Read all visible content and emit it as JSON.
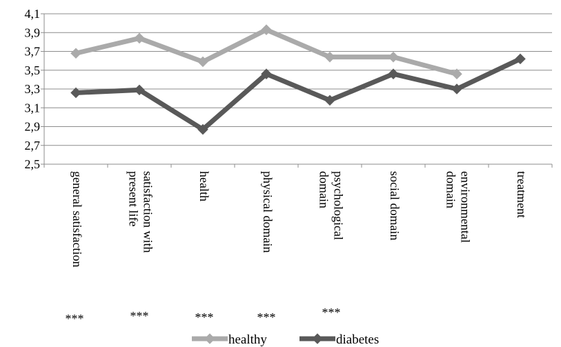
{
  "chart_data": {
    "type": "line",
    "title": "",
    "xlabel": "",
    "ylabel": "",
    "ylim": [
      2.5,
      4.1
    ],
    "yticks": [
      "2,5",
      "2,7",
      "2,9",
      "3,1",
      "3,3",
      "3,5",
      "3,7",
      "3,9",
      "4,1"
    ],
    "grid": true,
    "legend_position": "bottom",
    "categories": [
      [
        "general satisfaction"
      ],
      [
        "satisfaction with",
        "present life"
      ],
      [
        "health"
      ],
      [
        "physical domain"
      ],
      [
        "psychological",
        "domain"
      ],
      [
        "social domain"
      ],
      [
        "environmental",
        "domain"
      ],
      [
        "treatment"
      ]
    ],
    "significance": [
      "***",
      "***",
      "***",
      "***",
      "***",
      "",
      "",
      ""
    ],
    "series": [
      {
        "name": "healthy",
        "color": "#aaaaaa",
        "values": [
          3.68,
          3.84,
          3.59,
          3.93,
          3.64,
          3.64,
          3.46,
          null
        ]
      },
      {
        "name": "diabetes",
        "color": "#595959",
        "values": [
          3.26,
          3.29,
          2.87,
          3.46,
          3.18,
          3.46,
          3.3,
          3.62
        ]
      }
    ]
  }
}
